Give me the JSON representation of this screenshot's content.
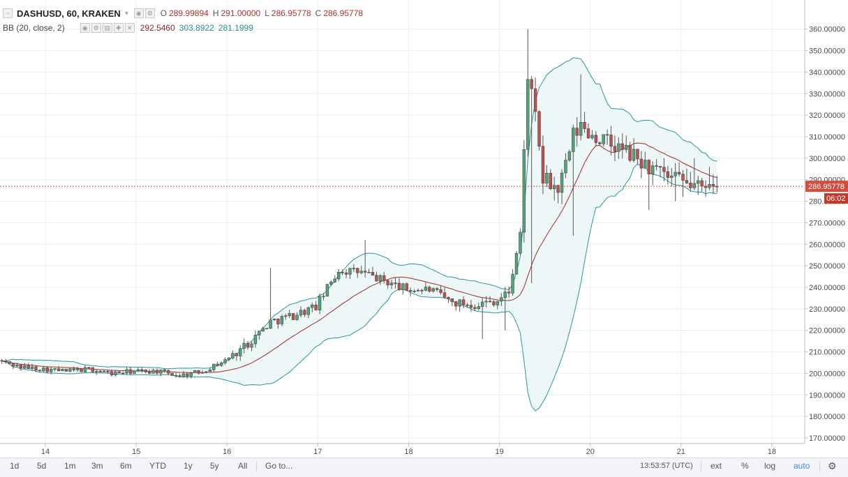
{
  "legend": {
    "symbol": "DASHUSD, 60, KRAKEN",
    "open_label": "O",
    "open": "289.99894",
    "high_label": "H",
    "high": "291.00000",
    "low_label": "L",
    "low": "286.95778",
    "close_label": "C",
    "close": "286.95778",
    "indicator": "BB (20, close, 2)",
    "bb_mid": "292.5460",
    "bb_upper": "303.8922",
    "bb_lower": "281.1999"
  },
  "price_tag": "286.95778",
  "countdown_tag": "06:02",
  "toolbar": {
    "ranges": [
      "1d",
      "5d",
      "1m",
      "3m",
      "6m",
      "YTD",
      "1y",
      "5y",
      "All"
    ],
    "goto": "Go to...",
    "time": "13:53:57 (UTC)",
    "ext": "ext",
    "percent": "%",
    "log": "log",
    "auto": "auto",
    "settings_icon": "gear-icon"
  },
  "colors": {
    "up": "#53a37b",
    "down": "#c0504d",
    "band": "#2e9496",
    "basis": "#9b2b2b",
    "band_fill": "#eef7f7",
    "price_line": "#d84b3c",
    "countdown_bg": "#c0392b"
  },
  "chart_data": {
    "type": "candlestick",
    "y_ticks": [
      "360.00000",
      "350.00000",
      "340.00000",
      "330.00000",
      "320.00000",
      "310.00000",
      "300.00000",
      "290.00000",
      "280.00000",
      "270.00000",
      "260.00000",
      "250.00000",
      "240.00000",
      "230.00000",
      "220.00000",
      "210.00000",
      "200.00000",
      "190.00000",
      "180.00000",
      "170.00000"
    ],
    "y_tick_values": [
      360,
      350,
      340,
      330,
      320,
      310,
      300,
      290,
      280,
      270,
      260,
      250,
      240,
      230,
      220,
      210,
      200,
      190,
      180,
      170
    ],
    "ylim": [
      167.4,
      366.4
    ],
    "x_ticks": [
      "14",
      "15",
      "16",
      "17",
      "18",
      "19",
      "20",
      "21",
      "18"
    ],
    "x_tick_hours": [
      12,
      36,
      60,
      84,
      108,
      132,
      156,
      180,
      204
    ],
    "xlim": [
      0,
      212.5
    ],
    "grid": true,
    "current_price": 286.95778,
    "anchors": [
      [
        0,
        206
      ],
      [
        6,
        203
      ],
      [
        12,
        202
      ],
      [
        18,
        201
      ],
      [
        24,
        202
      ],
      [
        30,
        200
      ],
      [
        36,
        201
      ],
      [
        42,
        201
      ],
      [
        48,
        199
      ],
      [
        54,
        201
      ],
      [
        60,
        206
      ],
      [
        66,
        214
      ],
      [
        72,
        224
      ],
      [
        78,
        227
      ],
      [
        84,
        231
      ],
      [
        90,
        248
      ],
      [
        96,
        247
      ],
      [
        102,
        243
      ],
      [
        108,
        239
      ],
      [
        114,
        239
      ],
      [
        120,
        233
      ],
      [
        126,
        232
      ],
      [
        132,
        234
      ],
      [
        135,
        238
      ],
      [
        138,
        265
      ],
      [
        140,
        340
      ],
      [
        142,
        318
      ],
      [
        144,
        290
      ],
      [
        146,
        288
      ],
      [
        148,
        285
      ],
      [
        150,
        296
      ],
      [
        152,
        310
      ],
      [
        154,
        315
      ],
      [
        156,
        312
      ],
      [
        158,
        310
      ],
      [
        160,
        308
      ],
      [
        162,
        306
      ],
      [
        166,
        303
      ],
      [
        170,
        298
      ],
      [
        174,
        293
      ],
      [
        178,
        290
      ],
      [
        182,
        288
      ],
      [
        186,
        286
      ],
      [
        188,
        291
      ],
      [
        190,
        289
      ]
    ],
    "lows_override": [
      [
        140,
        242
      ],
      [
        151,
        264
      ],
      [
        133,
        220
      ],
      [
        127,
        216
      ],
      [
        171,
        276
      ],
      [
        178,
        280
      ],
      [
        180,
        282
      ]
    ],
    "highs_override": [
      [
        139,
        360
      ],
      [
        153,
        339
      ],
      [
        71,
        249
      ],
      [
        96,
        262
      ],
      [
        183,
        300
      ],
      [
        187,
        296
      ]
    ],
    "bollinger": {
      "period": 20,
      "stddev": 2
    }
  }
}
